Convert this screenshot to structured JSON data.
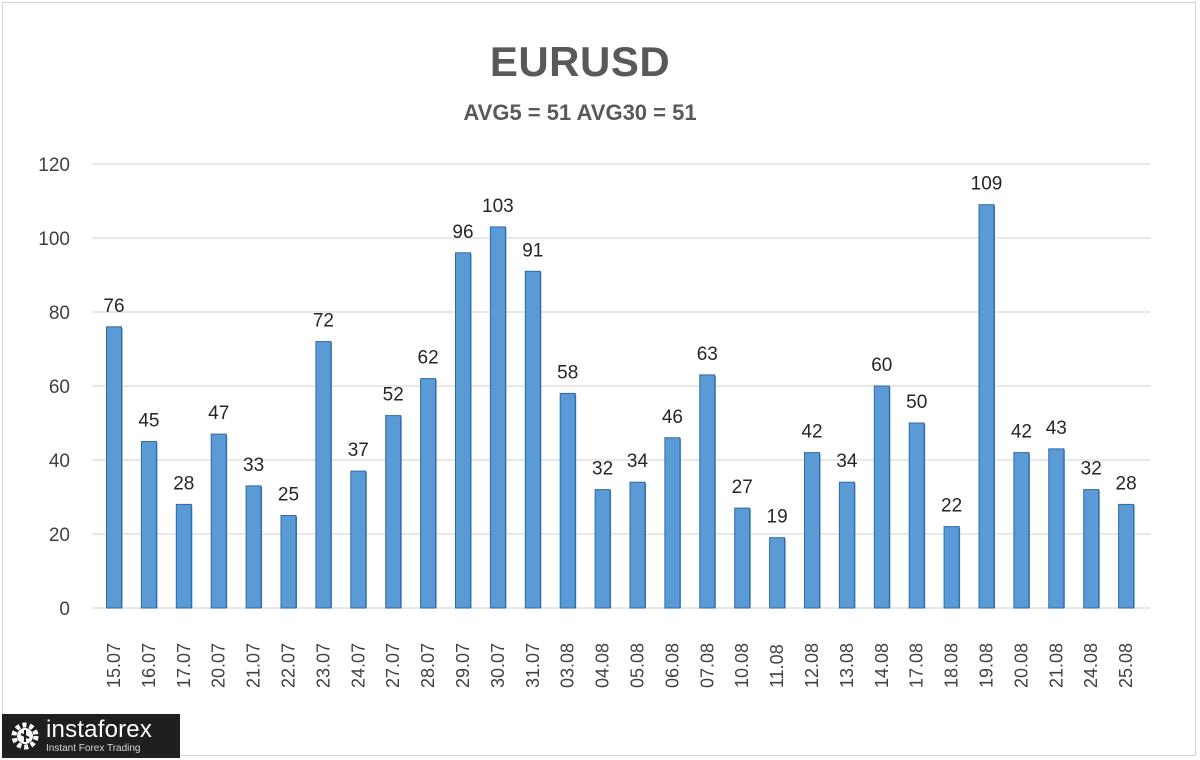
{
  "chart_data": {
    "type": "bar",
    "title": "EURUSD",
    "subtitle": "AVG5 = 51 AVG30 = 51",
    "xlabel": "",
    "ylabel": "",
    "ylim": [
      0,
      120
    ],
    "yticks": [
      0,
      20,
      40,
      60,
      80,
      100,
      120
    ],
    "grid": true,
    "categories": [
      "15.07",
      "16.07",
      "17.07",
      "20.07",
      "21.07",
      "22.07",
      "23.07",
      "24.07",
      "27.07",
      "28.07",
      "29.07",
      "30.07",
      "31.07",
      "03.08",
      "04.08",
      "05.08",
      "06.08",
      "07.08",
      "10.08",
      "11.08",
      "12.08",
      "13.08",
      "14.08",
      "17.08",
      "18.08",
      "19.08",
      "20.08",
      "21.08",
      "24.08",
      "25.08"
    ],
    "values": [
      76,
      45,
      28,
      47,
      33,
      25,
      72,
      37,
      52,
      62,
      96,
      103,
      91,
      58,
      32,
      34,
      46,
      63,
      27,
      19,
      42,
      34,
      60,
      50,
      22,
      109,
      42,
      43,
      32,
      28
    ],
    "bar_color": "#5b9bd5",
    "bar_edge_color": "#2e6aa8"
  },
  "watermark": {
    "name": "instaforex",
    "tagline": "Instant Forex Trading"
  }
}
